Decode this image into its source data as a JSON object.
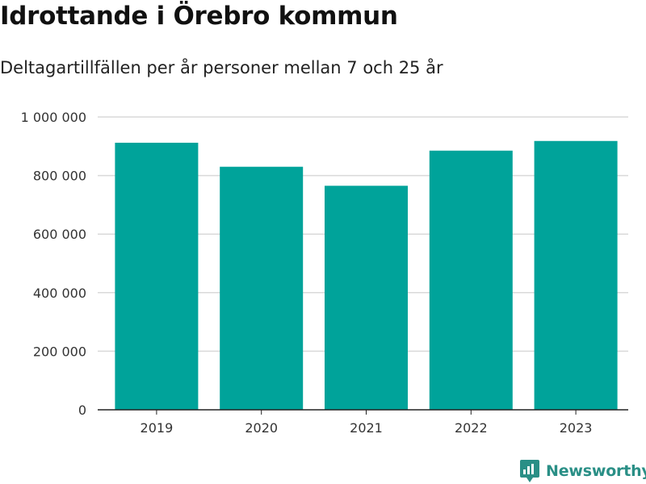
{
  "title": "Idrottande i Örebro kommun",
  "subtitle": "Deltagartillfällen per år personer mellan 7 och 25 år",
  "brand": {
    "name": "Newsworthy",
    "color": "#2a8f86",
    "icon": "newsworthy-logo-icon"
  },
  "colors": {
    "bar": "#00a39a",
    "grid": "#d9d9d9",
    "axis": "#222222"
  },
  "chart_data": {
    "type": "bar",
    "categories": [
      "2019",
      "2020",
      "2021",
      "2022",
      "2023"
    ],
    "values": [
      912000,
      830000,
      765000,
      885000,
      918000
    ],
    "title": "Idrottande i Örebro kommun",
    "subtitle": "Deltagartillfällen per år personer mellan 7 och 25 år",
    "xlabel": "",
    "ylabel": "",
    "ylim": [
      0,
      1000000
    ],
    "yticks": [
      0,
      200000,
      400000,
      600000,
      800000,
      1000000
    ],
    "ytick_labels": [
      "0",
      "200 000",
      "400 000",
      "600 000",
      "800 000",
      "1 000 000"
    ],
    "grid": "horizontal",
    "legend": "none"
  }
}
